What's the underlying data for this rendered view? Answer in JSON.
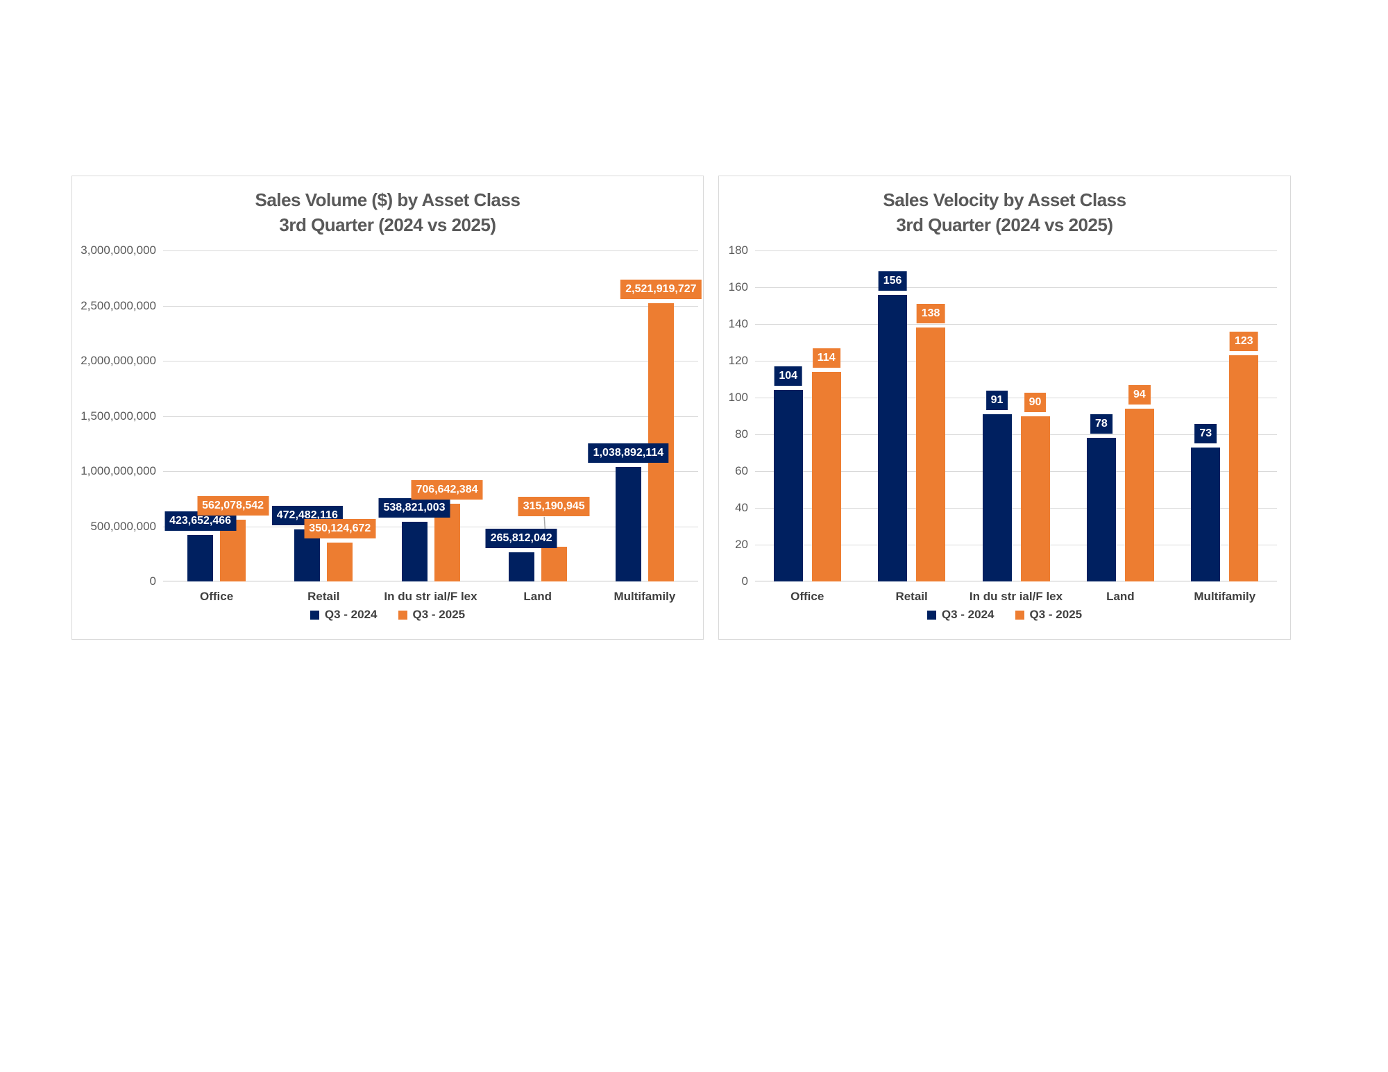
{
  "page": {
    "background": "#FFFFFF"
  },
  "colors": {
    "series_q3_2024": "#002060",
    "series_q3_2025": "#ED7D31",
    "gridline": "#D9D9D9",
    "axis_line": "#C6C6C6",
    "panel_border": "#D9D9D9",
    "title_text": "#595959",
    "tick_text": "#595959",
    "category_text": "#404040",
    "legend_text": "#404040",
    "data_label_text": "#FFFFFF",
    "leader_line": "#A6A6A6"
  },
  "chart_data": [
    {
      "id": "sales-volume",
      "type": "bar",
      "title_line1": "Sales Volume ($) by Asset Class",
      "title_line2": "3rd Quarter (2024 vs 2025)",
      "categories": [
        "Office",
        "Retail",
        "In du str ial/F lex",
        "Land",
        "Multifamily"
      ],
      "series": [
        {
          "name": "Q3 - 2024",
          "color": "#002060",
          "values": [
            423652466,
            472482116,
            538821003,
            265812042,
            1038892114
          ],
          "labels": [
            "423,652,466",
            "472,482,116",
            "538,821,003",
            "265,812,042",
            "1,038,892,114"
          ],
          "label_offsets": [
            {},
            {},
            {},
            {},
            {}
          ]
        },
        {
          "name": "Q3 - 2025",
          "color": "#ED7D31",
          "values": [
            562078542,
            350124672,
            706642384,
            315190945,
            2521919727
          ],
          "labels": [
            "562,078,542",
            "350,124,672",
            "706,642,384",
            "315,190,945",
            "2,521,919,727"
          ],
          "label_offsets": [
            {},
            {},
            {},
            {
              "dy": -38,
              "leader": true
            },
            {}
          ]
        }
      ],
      "ylim": [
        0,
        3000000000
      ],
      "ytick_step": 500000000,
      "yticks": [
        "0",
        "500,000,000",
        "1,000,000,000",
        "1,500,000,000",
        "2,000,000,000",
        "2,500,000,000",
        "3,000,000,000"
      ],
      "grid": true,
      "legend_position": "bottom",
      "data_label_style": "solid-badge"
    },
    {
      "id": "sales-velocity",
      "type": "bar",
      "title_line1": "Sales Velocity by Asset Class",
      "title_line2": "3rd Quarter (2024 vs 2025)",
      "categories": [
        "Office",
        "Retail",
        "In du str ial/F lex",
        "Land",
        "Multifamily"
      ],
      "series": [
        {
          "name": "Q3 - 2024",
          "color": "#002060",
          "values": [
            104,
            156,
            91,
            78,
            73
          ],
          "labels": [
            "104",
            "156",
            "91",
            "78",
            "73"
          ],
          "label_offsets": [
            {},
            {},
            {},
            {},
            {}
          ]
        },
        {
          "name": "Q3 - 2025",
          "color": "#ED7D31",
          "values": [
            114,
            138,
            90,
            94,
            123
          ],
          "labels": [
            "114",
            "138",
            "90",
            "94",
            "123"
          ],
          "label_offsets": [
            {},
            {},
            {},
            {},
            {}
          ]
        }
      ],
      "ylim": [
        0,
        180
      ],
      "ytick_step": 20,
      "yticks": [
        "0",
        "20",
        "40",
        "60",
        "80",
        "100",
        "120",
        "140",
        "160",
        "180"
      ],
      "grid": true,
      "legend_position": "bottom",
      "data_label_style": "solid-badge"
    }
  ]
}
